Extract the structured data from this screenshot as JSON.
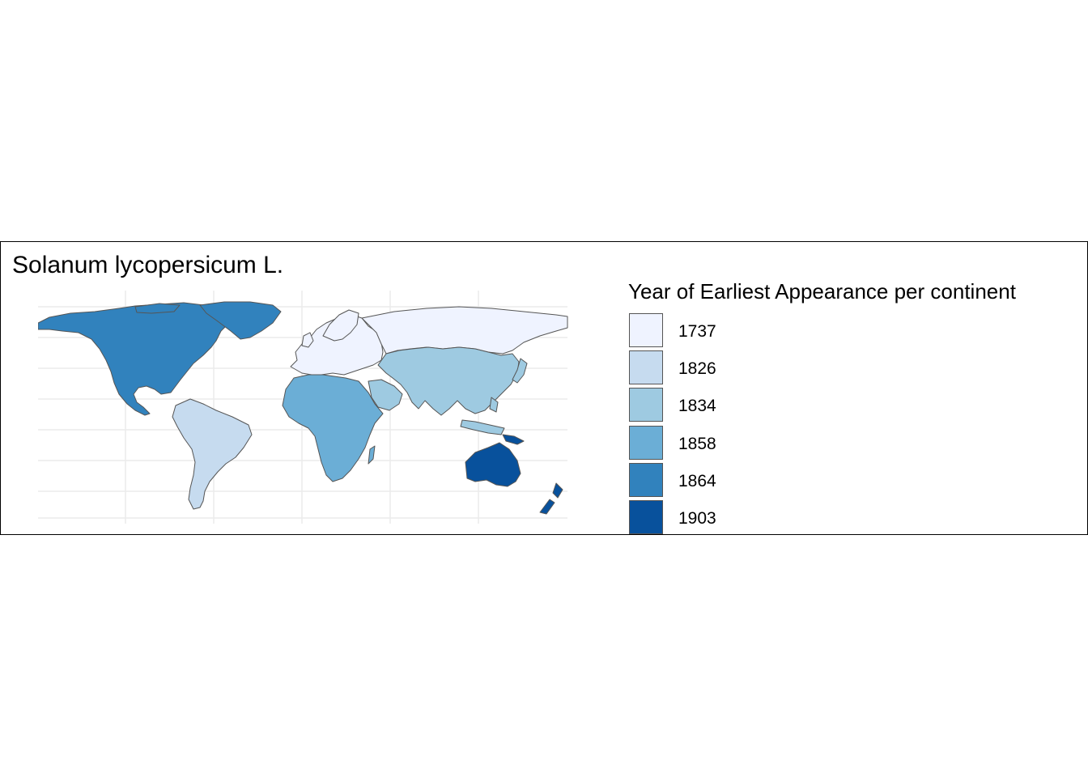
{
  "title": "Solanum lycopersicum L.",
  "legend": {
    "title": "Year of Earliest Appearance per continent",
    "entries": [
      {
        "label": "1737",
        "color": "#eff3ff"
      },
      {
        "label": "1826",
        "color": "#c6dbef"
      },
      {
        "label": "1834",
        "color": "#9ecae1"
      },
      {
        "label": "1858",
        "color": "#6baed6"
      },
      {
        "label": "1864",
        "color": "#3182bd"
      },
      {
        "label": "1903",
        "color": "#08519c"
      }
    ]
  },
  "regions": [
    {
      "name": "north-america",
      "year": "1864"
    },
    {
      "name": "south-america",
      "year": "1826"
    },
    {
      "name": "europe",
      "year": "1737"
    },
    {
      "name": "africa",
      "year": "1858"
    },
    {
      "name": "asia",
      "year": "1834"
    },
    {
      "name": "oceania",
      "year": "1903"
    }
  ],
  "colors": {
    "border": "#555555",
    "grid": "#ebebeb",
    "frame": "#000000"
  }
}
